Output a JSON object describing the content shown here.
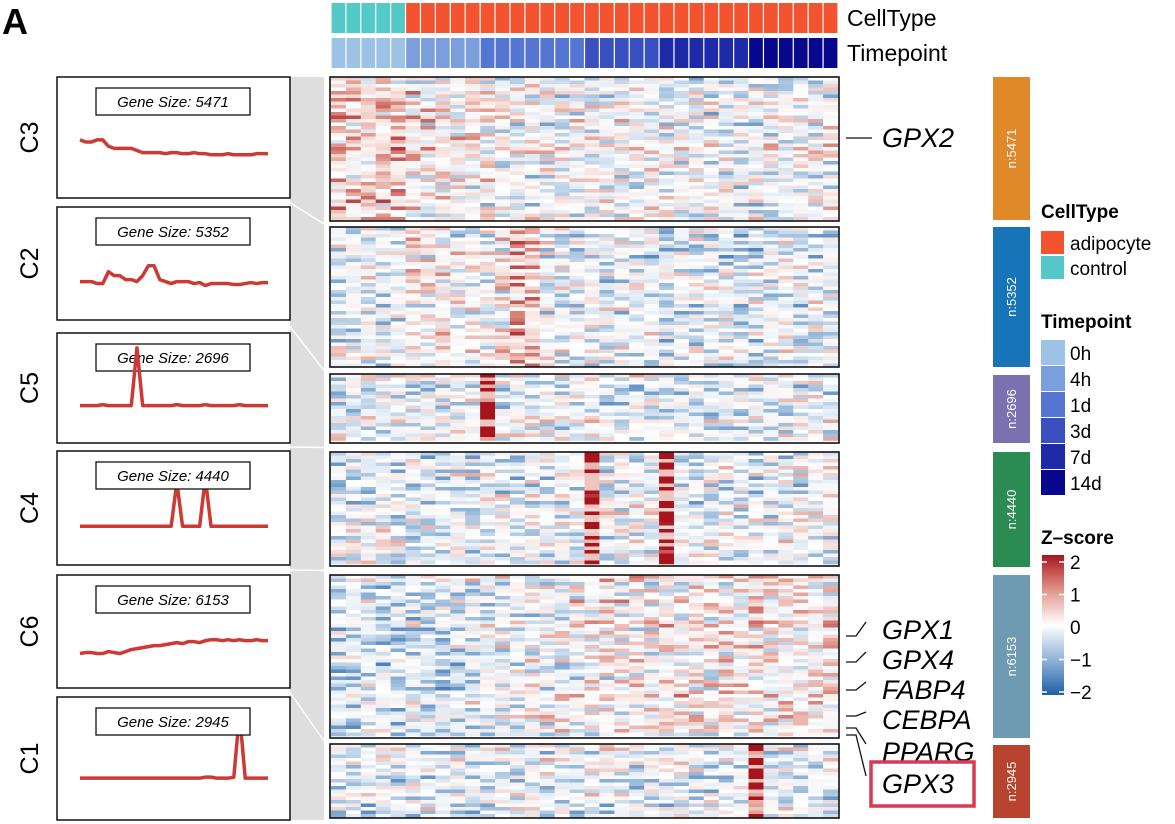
{
  "panel_letter": "A",
  "chart_data": {
    "type": "heatmap",
    "annotations": {
      "celltype_title": "CellType",
      "timepoint_title": "Timepoint",
      "celltype_columns": [
        "control",
        "control",
        "control",
        "control",
        "control",
        "adipocyte",
        "adipocyte",
        "adipocyte",
        "adipocyte",
        "adipocyte",
        "adipocyte",
        "adipocyte",
        "adipocyte",
        "adipocyte",
        "adipocyte",
        "adipocyte",
        "adipocyte",
        "adipocyte",
        "adipocyte",
        "adipocyte",
        "adipocyte",
        "adipocyte",
        "adipocyte",
        "adipocyte",
        "adipocyte",
        "adipocyte",
        "adipocyte",
        "adipocyte",
        "adipocyte",
        "adipocyte",
        "adipocyte",
        "adipocyte",
        "adipocyte",
        "adipocyte"
      ],
      "timepoint_columns": [
        "0h",
        "0h",
        "0h",
        "0h",
        "0h",
        "4h",
        "4h",
        "4h",
        "4h",
        "4h",
        "1d",
        "1d",
        "1d",
        "1d",
        "1d",
        "1d",
        "1d",
        "3d",
        "3d",
        "3d",
        "3d",
        "3d",
        "7d",
        "7d",
        "7d",
        "7d",
        "7d",
        "7d",
        "14d",
        "14d",
        "14d",
        "14d",
        "14d",
        "14d"
      ]
    },
    "legends": {
      "celltype": {
        "title": "CellType",
        "items": [
          {
            "label": "adipocyte",
            "color": "#f4532f"
          },
          {
            "label": "control",
            "color": "#55c8c8"
          }
        ]
      },
      "timepoint": {
        "title": "Timepoint",
        "items": [
          {
            "label": "0h",
            "color": "#9cc3e6"
          },
          {
            "label": "4h",
            "color": "#7b9edd"
          },
          {
            "label": "1d",
            "color": "#5575d3"
          },
          {
            "label": "3d",
            "color": "#3a4fc0"
          },
          {
            "label": "7d",
            "color": "#1e2aa8"
          },
          {
            "label": "14d",
            "color": "#08088f"
          }
        ]
      },
      "zscore": {
        "title": "Z–score",
        "ticks": [
          "2",
          "1",
          "0",
          "−1",
          "−2"
        ],
        "range": [
          -2,
          2
        ],
        "colors": [
          "#1f5ea6",
          "#8fb3d6",
          "#ffffff",
          "#e0968a",
          "#a8141c"
        ]
      }
    },
    "clusters": [
      {
        "id": "C3",
        "gene_size_label": "Gene Size: 5471",
        "n_label": "n:5471",
        "color": "#e0892b",
        "profile": [
          0.8,
          0.7,
          0.7,
          0.8,
          0.8,
          0.5,
          0.4,
          0.4,
          0.4,
          0.4,
          0.3,
          0.2,
          0.2,
          0.2,
          0.2,
          0.15,
          0.2,
          0.2,
          0.15,
          0.15,
          0.2,
          0.15,
          0.15,
          0.1,
          0.1,
          0.1,
          0.15,
          0.1,
          0.1,
          0.1,
          0.1,
          0.15,
          0.15,
          0.15
        ]
      },
      {
        "id": "C2",
        "gene_size_label": "Gene Size: 5352",
        "n_label": "n:5352",
        "color": "#1874b8",
        "profile": [
          0,
          0,
          0,
          -0.1,
          -0.1,
          0.5,
          0.3,
          0.3,
          0.1,
          0.1,
          0,
          0.3,
          0.8,
          0.8,
          0.1,
          0,
          -0.1,
          0,
          0,
          0,
          -0.1,
          -0.05,
          -0.2,
          -0.1,
          -0.1,
          -0.1,
          -0.1,
          -0.15,
          -0.15,
          -0.1,
          -0.05,
          -0.1,
          -0.05,
          -0.05
        ]
      },
      {
        "id": "C5",
        "gene_size_label": "Gene Size: 2696",
        "n_label": "n:2696",
        "color": "#7b70b0",
        "profile": [
          0,
          0,
          0,
          0,
          0.05,
          0,
          0,
          0,
          0,
          0,
          3,
          0,
          0,
          0,
          0,
          0,
          0,
          0.05,
          0,
          0,
          0,
          0,
          0.05,
          0,
          0,
          0,
          0,
          0,
          0.05,
          0,
          0,
          0,
          0,
          0
        ]
      },
      {
        "id": "C4",
        "gene_size_label": "Gene Size: 4440",
        "n_label": "n:4440",
        "color": "#2a8c52",
        "profile": [
          0,
          0,
          0,
          0,
          0,
          0,
          0,
          0,
          0,
          0,
          0,
          0,
          0,
          0,
          0,
          0,
          0,
          2.2,
          0,
          0,
          0,
          0,
          2.4,
          0,
          0,
          0,
          0,
          0,
          0,
          0,
          0,
          0,
          0,
          0
        ]
      },
      {
        "id": "C6",
        "gene_size_label": "Gene Size: 6153",
        "n_label": "n:6153",
        "color": "#6e9bb2",
        "profile": [
          -0.2,
          -0.15,
          -0.15,
          -0.2,
          -0.2,
          -0.1,
          -0.15,
          -0.2,
          -0.1,
          0,
          0.05,
          0.1,
          0.15,
          0.2,
          0.2,
          0.25,
          0.3,
          0.35,
          0.3,
          0.4,
          0.4,
          0.35,
          0.45,
          0.5,
          0.5,
          0.45,
          0.5,
          0.45,
          0.5,
          0.45,
          0.45,
          0.5,
          0.45,
          0.45
        ]
      },
      {
        "id": "C1",
        "gene_size_label": "Gene Size: 2945",
        "n_label": "n:2945",
        "color": "#b8432e",
        "profile": [
          0,
          0,
          0,
          0,
          0,
          0,
          0,
          0,
          0,
          0,
          0,
          0,
          0,
          0,
          0,
          0,
          0,
          0,
          0,
          0,
          0,
          0,
          0.05,
          0.05,
          0,
          0,
          0,
          0.05,
          3,
          0,
          0,
          0,
          0,
          0
        ]
      }
    ],
    "highlighted_genes": [
      "GPX2",
      "GPX1",
      "GPX4",
      "FABP4",
      "CEBPA",
      "PPARG",
      "GPX3"
    ],
    "boxed_gene": "GPX3",
    "box_color": "#d63a55",
    "line_color": "#cc3a33"
  }
}
